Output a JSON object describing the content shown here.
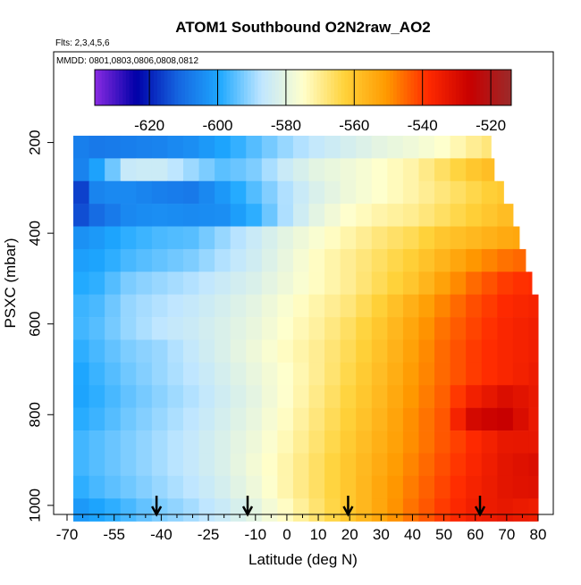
{
  "chart_data": {
    "type": "heatmap",
    "title": "ATOM1 Southbound O2N2raw_AO2",
    "subtitle_flights": "Flts: 2,3,4,5,6",
    "subtitle_dates": "MMDD: 0801,0803,0806,0808,0812",
    "xlabel": "Latitude (deg N)",
    "ylabel": "PSXC (mbar)",
    "xlim": [
      -70,
      80
    ],
    "ylim": [
      1020,
      0
    ],
    "x_ticks": [
      -70,
      -55,
      -40,
      -25,
      -10,
      0,
      10,
      20,
      30,
      40,
      50,
      60,
      70,
      80
    ],
    "x_tick_labels": [
      "-70",
      "-55",
      "-40",
      "-25",
      "-10",
      "0",
      "10",
      "20",
      "30",
      "40",
      "50",
      "60",
      "70",
      "80"
    ],
    "y_ticks": [
      200,
      400,
      600,
      800,
      1000
    ],
    "y_tick_labels": [
      "200",
      "400",
      "600",
      "800",
      "1000"
    ],
    "colorbar": {
      "min": -636,
      "max": -514,
      "ticks": [
        -620,
        -600,
        -580,
        -560,
        -540,
        -520
      ],
      "tick_labels": [
        "-620",
        "-600",
        "-580",
        "-560",
        "-540",
        "-520"
      ],
      "colors": [
        "#8a2be2",
        "#0000a8",
        "#1565e0",
        "#1ea8ff",
        "#bfe6ff",
        "#ffffcc",
        "#ffd23a",
        "#ff9a00",
        "#ff2a00",
        "#c80000",
        "#9c2a2a"
      ]
    },
    "profile_markers_lat": [
      -41.5,
      -12.5,
      19.5,
      61.5
    ],
    "pressure_levels": [
      210,
      260,
      310,
      360,
      410,
      460,
      510,
      560,
      610,
      660,
      710,
      760,
      810,
      860,
      910,
      960,
      1010
    ],
    "latitude_nodes": [
      -70,
      -60,
      -50,
      -40,
      -30,
      -20,
      -10,
      0,
      10,
      20,
      30,
      40,
      50,
      60,
      70,
      80
    ],
    "level_extent": [
      [
        -68,
        65
      ],
      [
        -68,
        66
      ],
      [
        -68,
        69
      ],
      [
        -68,
        72
      ],
      [
        -68,
        74
      ],
      [
        -68,
        76
      ],
      [
        -68,
        78
      ],
      [
        -68,
        80
      ],
      [
        -68,
        80
      ],
      [
        -68,
        80
      ],
      [
        -68,
        80
      ],
      [
        -68,
        80
      ],
      [
        -68,
        80
      ],
      [
        -68,
        80
      ],
      [
        -68,
        80
      ],
      [
        -68,
        80
      ],
      [
        -68,
        80
      ]
    ],
    "values": [
      [
        -606,
        -608,
        -607,
        -606,
        -604,
        -600,
        -595,
        -590,
        -586,
        -583,
        -580,
        -578,
        -575,
        -570,
        -565,
        -560
      ],
      [
        -611,
        -600,
        -585,
        -585,
        -590,
        -595,
        -592,
        -585,
        -580,
        -578,
        -575,
        -572,
        -566,
        -560,
        -556,
        -555
      ],
      [
        -625,
        -605,
        -605,
        -607,
        -608,
        -602,
        -595,
        -588,
        -582,
        -578,
        -575,
        -572,
        -568,
        -564,
        -560,
        -558
      ],
      [
        -618,
        -610,
        -605,
        -604,
        -605,
        -604,
        -598,
        -588,
        -580,
        -575,
        -572,
        -570,
        -566,
        -562,
        -558,
        -556
      ],
      [
        -605,
        -602,
        -598,
        -596,
        -595,
        -590,
        -585,
        -580,
        -576,
        -572,
        -568,
        -565,
        -560,
        -557,
        -554,
        -552
      ],
      [
        -602,
        -600,
        -596,
        -594,
        -592,
        -588,
        -584,
        -579,
        -574,
        -570,
        -566,
        -562,
        -556,
        -550,
        -546,
        -544
      ],
      [
        -600,
        -598,
        -592,
        -590,
        -588,
        -585,
        -582,
        -578,
        -574,
        -570,
        -565,
        -560,
        -552,
        -545,
        -540,
        -538
      ],
      [
        -598,
        -596,
        -590,
        -588,
        -586,
        -583,
        -580,
        -576,
        -572,
        -568,
        -562,
        -555,
        -548,
        -542,
        -538,
        -536
      ],
      [
        -598,
        -595,
        -590,
        -587,
        -585,
        -582,
        -579,
        -575,
        -571,
        -566,
        -560,
        -553,
        -546,
        -541,
        -537,
        -535
      ],
      [
        -600,
        -596,
        -592,
        -590,
        -586,
        -582,
        -578,
        -574,
        -570,
        -565,
        -559,
        -552,
        -545,
        -540,
        -537,
        -535
      ],
      [
        -602,
        -597,
        -593,
        -590,
        -587,
        -583,
        -579,
        -575,
        -570,
        -564,
        -558,
        -551,
        -545,
        -540,
        -537,
        -534
      ],
      [
        -602,
        -598,
        -594,
        -591,
        -588,
        -584,
        -580,
        -575,
        -569,
        -563,
        -557,
        -550,
        -544,
        -535,
        -530,
        -534
      ],
      [
        -600,
        -597,
        -593,
        -590,
        -587,
        -583,
        -579,
        -574,
        -568,
        -562,
        -556,
        -549,
        -543,
        -528,
        -526,
        -535
      ],
      [
        -598,
        -595,
        -592,
        -589,
        -586,
        -582,
        -578,
        -573,
        -567,
        -561,
        -555,
        -549,
        -543,
        -538,
        -533,
        -533
      ],
      [
        -598,
        -595,
        -592,
        -589,
        -586,
        -582,
        -577,
        -572,
        -566,
        -560,
        -554,
        -548,
        -542,
        -537,
        -532,
        -530
      ],
      [
        -600,
        -596,
        -593,
        -590,
        -587,
        -583,
        -578,
        -572,
        -566,
        -560,
        -553,
        -547,
        -541,
        -536,
        -532,
        -531
      ],
      [
        -604,
        -600,
        -596,
        -592,
        -589,
        -585,
        -580,
        -574,
        -567,
        -560,
        -553,
        -546,
        -540,
        -535,
        -533,
        -535
      ]
    ]
  }
}
